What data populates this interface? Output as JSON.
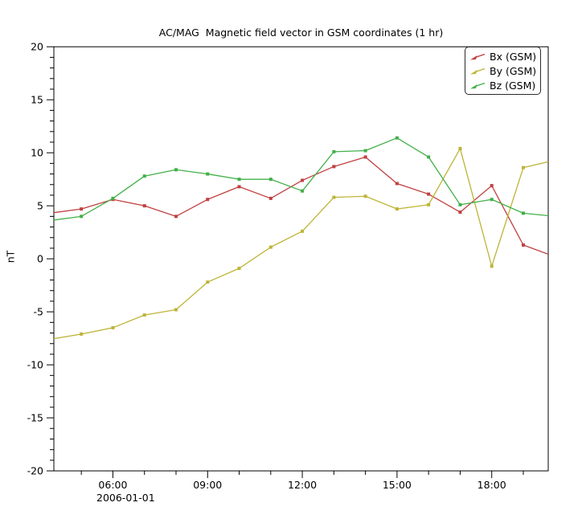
{
  "title": "AC/MAG  Magnetic field vector in GSM coordinates (1 hr)",
  "chart_data": {
    "type": "line",
    "title": "AC/MAG  Magnetic field vector in GSM coordinates (1 hr)",
    "xlabel": "",
    "ylabel": "nT",
    "x_date_label": "2006-01-01",
    "grid": false,
    "legend_position": "top-right",
    "axis_color": "#000000",
    "y_range": [
      -20,
      20
    ],
    "y_major_step": 5,
    "y_minor_step": 1,
    "y_tick_labels": [
      "-20",
      "-15",
      "-10",
      "-5",
      "0",
      "5",
      "10",
      "15",
      "20"
    ],
    "x_range_hours": [
      4.13,
      19.79
    ],
    "x_minor_step_hours": 1,
    "x_major_ticks": [
      {
        "hour": 6,
        "label": "06:00"
      },
      {
        "hour": 9,
        "label": "09:00"
      },
      {
        "hour": 12,
        "label": "12:00"
      },
      {
        "hour": 15,
        "label": "15:00"
      },
      {
        "hour": 18,
        "label": "18:00"
      }
    ],
    "x_hours": [
      4,
      5,
      6,
      7,
      8,
      9,
      10,
      11,
      12,
      13,
      14,
      15,
      16,
      17,
      18,
      19,
      20
    ],
    "x_categories": [
      "04:00",
      "05:00",
      "06:00",
      "07:00",
      "08:00",
      "09:00",
      "10:00",
      "11:00",
      "12:00",
      "13:00",
      "14:00",
      "15:00",
      "16:00",
      "17:00",
      "18:00",
      "19:00",
      "20:00"
    ],
    "series": [
      {
        "name": "Bx (GSM)",
        "color": "#c04040",
        "values": [
          4.3,
          4.7,
          5.6,
          5.0,
          4.0,
          5.6,
          6.8,
          5.7,
          7.4,
          8.7,
          9.6,
          7.1,
          6.1,
          4.4,
          6.9,
          1.3,
          0.2
        ]
      },
      {
        "name": "By (GSM)",
        "color": "#bdb437",
        "values": [
          -7.6,
          -7.1,
          -6.5,
          -5.3,
          -4.8,
          -2.2,
          -0.9,
          1.1,
          2.6,
          5.8,
          5.9,
          4.7,
          5.1,
          10.4,
          -0.7,
          8.6,
          9.3
        ]
      },
      {
        "name": "Bz (GSM)",
        "color": "#41b048",
        "values": [
          3.6,
          4.0,
          5.7,
          7.8,
          8.4,
          8.0,
          7.5,
          7.5,
          6.4,
          10.1,
          10.2,
          11.4,
          9.6,
          5.1,
          5.6,
          4.3,
          4.0
        ]
      }
    ]
  }
}
